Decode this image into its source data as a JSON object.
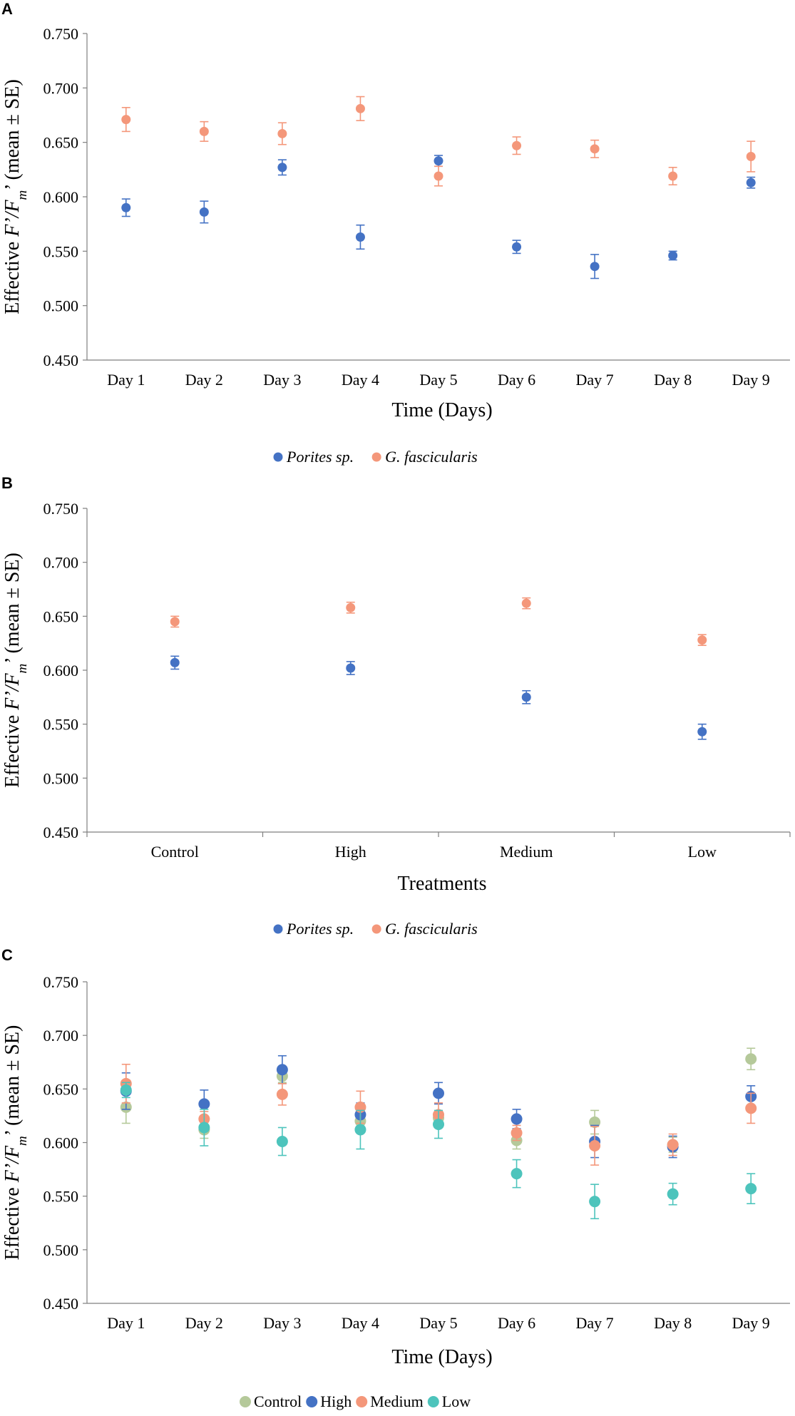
{
  "colors": {
    "porites": "#4472c4",
    "fascicularis": "#f4977a",
    "control": "#b5c99a",
    "high": "#4472c4",
    "medium": "#f4977a",
    "low": "#4dc4bc"
  },
  "chart_data": [
    {
      "panel": "A",
      "type": "scatter",
      "title": "",
      "xlabel": "Time (Days)",
      "ylabel_parts": [
        "Effective ",
        "F’/F",
        "m",
        "’ (mean ± SE)"
      ],
      "ylim": [
        0.45,
        0.75
      ],
      "yticks": [
        "0.450",
        "0.500",
        "0.550",
        "0.600",
        "0.650",
        "0.700",
        "0.750"
      ],
      "categories": [
        "Day 1",
        "Day 2",
        "Day 3",
        "Day 4",
        "Day 5",
        "Day 6",
        "Day 7",
        "Day 8",
        "Day 9"
      ],
      "category_ticks": false,
      "series": [
        {
          "name": "Porites sp.",
          "color_key": "porites",
          "values": [
            0.59,
            0.586,
            0.627,
            0.563,
            0.633,
            0.554,
            0.536,
            0.546,
            0.613
          ],
          "errors": [
            0.008,
            0.01,
            0.007,
            0.011,
            0.005,
            0.006,
            0.011,
            0.004,
            0.005
          ]
        },
        {
          "name": "G. fascicularis",
          "color_key": "fascicularis",
          "values": [
            0.671,
            0.66,
            0.658,
            0.681,
            0.619,
            0.647,
            0.644,
            0.619,
            0.637
          ],
          "errors": [
            0.011,
            0.009,
            0.01,
            0.011,
            0.009,
            0.008,
            0.008,
            0.008,
            0.014
          ]
        }
      ]
    },
    {
      "panel": "B",
      "type": "scatter",
      "title": "",
      "xlabel": "Treatments",
      "ylabel_parts": [
        "Effective ",
        "F’/F",
        "m",
        "’ (mean ± SE)"
      ],
      "ylim": [
        0.45,
        0.75
      ],
      "yticks": [
        "0.450",
        "0.500",
        "0.550",
        "0.600",
        "0.650",
        "0.700",
        "0.750"
      ],
      "categories": [
        "Control",
        "High",
        "Medium",
        "Low"
      ],
      "category_ticks": true,
      "series": [
        {
          "name": "Porites sp.",
          "color_key": "porites",
          "values": [
            0.607,
            0.602,
            0.575,
            0.543
          ],
          "errors": [
            0.006,
            0.006,
            0.006,
            0.007
          ]
        },
        {
          "name": "G. fascicularis",
          "color_key": "fascicularis",
          "values": [
            0.645,
            0.658,
            0.662,
            0.628
          ],
          "errors": [
            0.005,
            0.005,
            0.005,
            0.005
          ]
        }
      ]
    },
    {
      "panel": "C",
      "type": "scatter",
      "title": "",
      "xlabel": "Time (Days)",
      "ylabel_parts": [
        "Effective ",
        "F’/F",
        "m",
        "’ (mean ± SE)"
      ],
      "ylim": [
        0.45,
        0.75
      ],
      "yticks": [
        "0.450",
        "0.500",
        "0.550",
        "0.600",
        "0.650",
        "0.700",
        "0.750"
      ],
      "categories": [
        "Day 1",
        "Day 2",
        "Day 3",
        "Day 4",
        "Day 5",
        "Day 6",
        "Day 7",
        "Day 8",
        "Day 9"
      ],
      "category_ticks": false,
      "series": [
        {
          "name": "Control",
          "color_key": "control",
          "values": [
            0.633,
            0.612,
            0.662,
            0.62,
            0.623,
            0.602,
            0.619,
            0.598,
            0.678
          ],
          "errors": [
            0.015,
            0.008,
            0.006,
            0.006,
            0.006,
            0.008,
            0.011,
            0.007,
            0.01
          ]
        },
        {
          "name": "High",
          "color_key": "high",
          "values": [
            0.648,
            0.636,
            0.668,
            0.626,
            0.646,
            0.622,
            0.601,
            0.596,
            0.643
          ],
          "errors": [
            0.017,
            0.013,
            0.013,
            0.011,
            0.01,
            0.009,
            0.015,
            0.01,
            0.01
          ]
        },
        {
          "name": "Medium",
          "color_key": "medium",
          "values": [
            0.655,
            0.622,
            0.645,
            0.633,
            0.626,
            0.609,
            0.597,
            0.598,
            0.632
          ],
          "errors": [
            0.018,
            0.007,
            0.01,
            0.015,
            0.011,
            0.007,
            0.018,
            0.01,
            0.014
          ]
        },
        {
          "name": "Low",
          "color_key": "low",
          "values": [
            0.649,
            0.614,
            0.601,
            0.612,
            0.617,
            0.571,
            0.545,
            0.552,
            0.557
          ],
          "errors": [
            0.007,
            0.017,
            0.013,
            0.018,
            0.013,
            0.013,
            0.016,
            0.01,
            0.014
          ]
        }
      ]
    }
  ]
}
